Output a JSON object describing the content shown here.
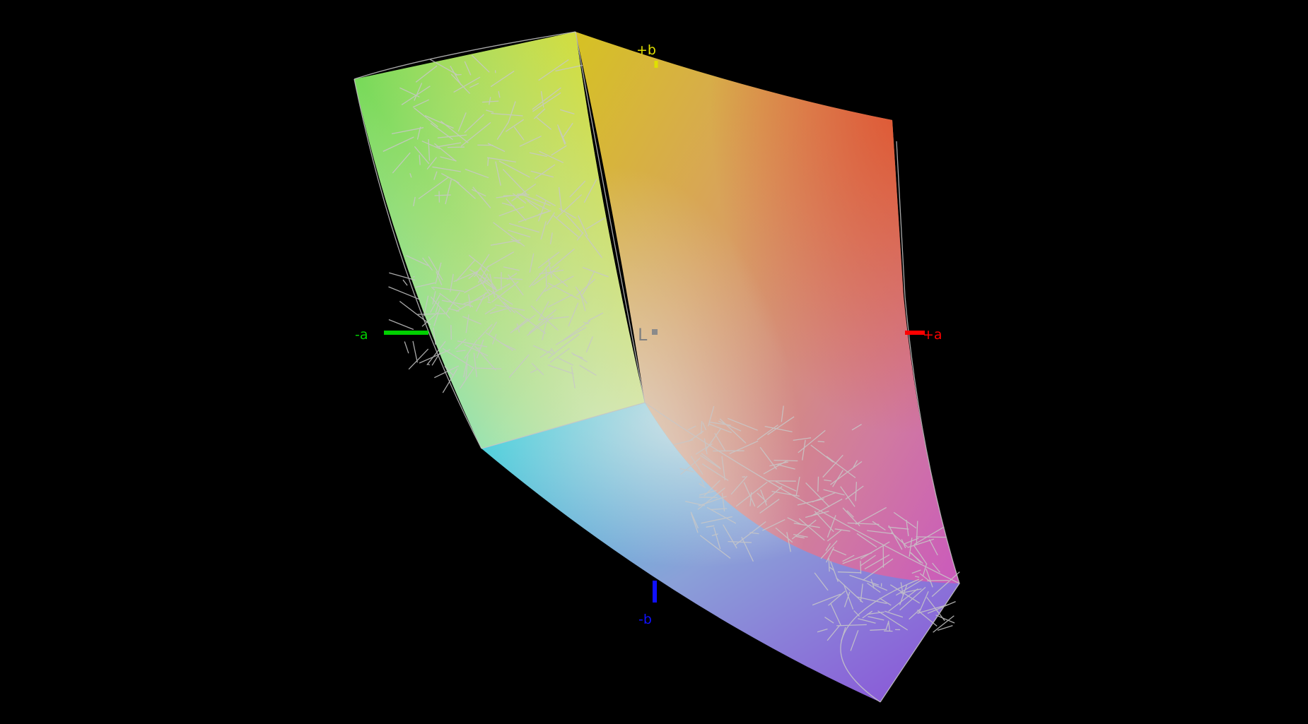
{
  "view": {
    "background": "#000000",
    "axes": {
      "plus_b": {
        "label": "+b",
        "color": "#e0e000"
      },
      "minus_b": {
        "label": "-b",
        "color": "#1010ff"
      },
      "minus_a": {
        "label": "-a",
        "color": "#00d000"
      },
      "plus_a": {
        "label": "+a",
        "color": "#ff0000"
      },
      "lightness": {
        "label": "L",
        "color": "#808080"
      }
    },
    "wireframe_color": "#c8c8c8"
  }
}
